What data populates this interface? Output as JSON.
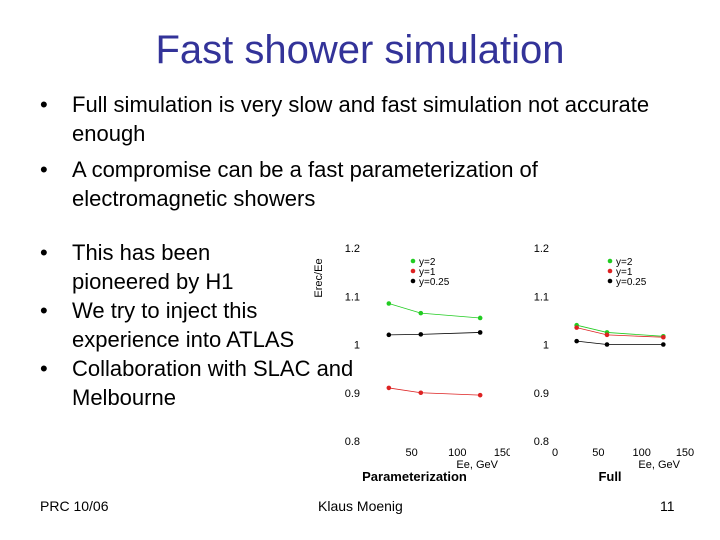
{
  "slide": {
    "title": "Fast shower simulation",
    "bullets_top": [
      "Full simulation is very slow and fast simulation not accurate enough",
      "A compromise can be a fast parameterization of electromagnetic showers"
    ],
    "bullets_side": [
      "This has been pioneered by H1",
      "We try to inject this experience into ATLAS",
      "Collaboration with SLAC and Melbourne"
    ],
    "bullet_symbol": "•"
  },
  "footer": {
    "left": "PRC 10/06",
    "center": "Klaus Moenig",
    "right": "11"
  },
  "colors": {
    "title": "#333399",
    "green": "#22cc22",
    "red": "#dd2222",
    "black": "#000000"
  },
  "chart_data": [
    {
      "type": "scatter",
      "caption": "Parameterization",
      "xlabel": "Ee, GeV",
      "ylabel": "Erec/Ee",
      "xlim": [
        0,
        150
      ],
      "ylim": [
        0.8,
        1.2
      ],
      "xticks": [
        "50",
        "100",
        "150"
      ],
      "yticks": [
        "0.8",
        "0.9",
        "1",
        "1.1",
        "1.2"
      ],
      "legend": "top-right",
      "series": [
        {
          "name": "y=2",
          "color": "#22cc22",
          "x": [
            25,
            60,
            125
          ],
          "y": [
            1.085,
            1.065,
            1.055
          ]
        },
        {
          "name": "y=1",
          "color": "#dd2222",
          "x": [
            25,
            60,
            125
          ],
          "y": [
            0.91,
            0.9,
            0.895
          ]
        },
        {
          "name": "y=0.25",
          "color": "#000000",
          "x": [
            25,
            60,
            125
          ],
          "y": [
            1.02,
            1.021,
            1.025
          ]
        }
      ]
    },
    {
      "type": "scatter",
      "caption": "Full",
      "xlabel": "Ee, GeV",
      "ylabel": "",
      "xlim": [
        0,
        150
      ],
      "ylim": [
        0.8,
        1.2
      ],
      "xticks": [
        "0",
        "50",
        "100",
        "150"
      ],
      "yticks": [
        "0.8",
        "0.9",
        "1",
        "1.1",
        "1.2"
      ],
      "legend": "top-right",
      "series": [
        {
          "name": "y=2",
          "color": "#22cc22",
          "x": [
            25,
            60,
            125
          ],
          "y": [
            1.04,
            1.025,
            1.017
          ]
        },
        {
          "name": "y=1",
          "color": "#dd2222",
          "x": [
            25,
            60,
            125
          ],
          "y": [
            1.035,
            1.02,
            1.015
          ]
        },
        {
          "name": "y=0.25",
          "color": "#000000",
          "x": [
            25,
            60,
            125
          ],
          "y": [
            1.007,
            1.0,
            1.0
          ]
        }
      ]
    }
  ]
}
